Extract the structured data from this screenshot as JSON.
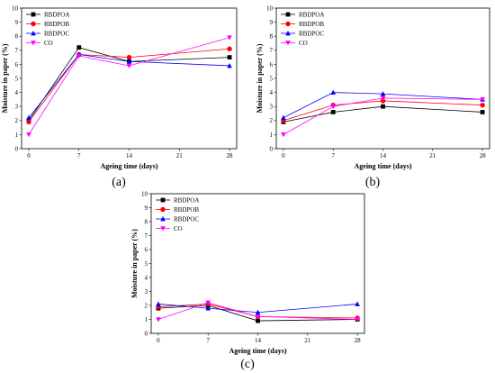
{
  "chart_data": [
    {
      "type": "line",
      "panel_label": "(a)",
      "xlabel": "Ageing time (days)",
      "ylabel": "Moisture in paper (%)",
      "x_ticks": [
        "0",
        "7",
        "14",
        "21",
        "28"
      ],
      "y_ticks": [
        "0",
        "1",
        "2",
        "3",
        "4",
        "5",
        "6",
        "7",
        "8",
        "9",
        "10"
      ],
      "xlim": [
        -1,
        29
      ],
      "ylim": [
        0,
        10
      ],
      "legend_position": "top-left",
      "x": [
        0,
        7,
        14,
        28
      ],
      "series": [
        {
          "name": "RBDPOA",
          "color": "#000000",
          "marker": "square",
          "values": [
            2.0,
            7.2,
            6.2,
            6.5
          ]
        },
        {
          "name": "RBDPOB",
          "color": "#ff0000",
          "marker": "circle",
          "values": [
            1.9,
            6.7,
            6.5,
            7.1
          ]
        },
        {
          "name": "RBDPOC",
          "color": "#0000ff",
          "marker": "triangle-up",
          "values": [
            2.2,
            6.7,
            6.2,
            5.9
          ]
        },
        {
          "name": "CO",
          "color": "#ff00ff",
          "marker": "triangle-down",
          "values": [
            1.0,
            6.6,
            5.9,
            7.9
          ]
        }
      ]
    },
    {
      "type": "line",
      "panel_label": "(b)",
      "xlabel": "Ageing time (days)",
      "ylabel": "Moisture in paper (%)",
      "x_ticks": [
        "0",
        "7",
        "14",
        "21",
        "28"
      ],
      "y_ticks": [
        "0",
        "1",
        "2",
        "3",
        "4",
        "5",
        "6",
        "7",
        "8",
        "9",
        "10"
      ],
      "xlim": [
        -1,
        29
      ],
      "ylim": [
        0,
        10
      ],
      "legend_position": "top-left",
      "x": [
        0,
        7,
        14,
        28
      ],
      "series": [
        {
          "name": "RBDPOA",
          "color": "#000000",
          "marker": "square",
          "values": [
            1.9,
            2.6,
            3.0,
            2.6
          ]
        },
        {
          "name": "RBDPOB",
          "color": "#ff0000",
          "marker": "circle",
          "values": [
            2.0,
            3.1,
            3.4,
            3.1
          ]
        },
        {
          "name": "RBDPOC",
          "color": "#0000ff",
          "marker": "triangle-up",
          "values": [
            2.2,
            4.0,
            3.9,
            3.5
          ]
        },
        {
          "name": "CO",
          "color": "#ff00ff",
          "marker": "triangle-down",
          "values": [
            1.0,
            3.0,
            3.6,
            3.5
          ]
        }
      ]
    },
    {
      "type": "line",
      "panel_label": "(c)",
      "xlabel": "Ageing time (days)",
      "ylabel": "Moisture in paper (%)",
      "x_ticks": [
        "0",
        "7",
        "14",
        "21",
        "28"
      ],
      "y_ticks": [
        "0",
        "1",
        "2",
        "3",
        "4",
        "5",
        "6",
        "7",
        "8",
        "9",
        "10"
      ],
      "xlim": [
        -1,
        29
      ],
      "ylim": [
        0,
        10
      ],
      "legend_position": "top-left",
      "x": [
        0,
        7,
        14,
        28
      ],
      "series": [
        {
          "name": "RBDPOA",
          "color": "#000000",
          "marker": "square",
          "values": [
            1.8,
            2.0,
            0.9,
            1.0
          ]
        },
        {
          "name": "RBDPOB",
          "color": "#ff0000",
          "marker": "circle",
          "values": [
            1.9,
            2.1,
            1.2,
            1.1
          ]
        },
        {
          "name": "RBDPOC",
          "color": "#0000ff",
          "marker": "triangle-up",
          "values": [
            2.1,
            1.8,
            1.5,
            2.1
          ]
        },
        {
          "name": "CO",
          "color": "#ff00ff",
          "marker": "triangle-down",
          "values": [
            1.0,
            2.2,
            1.2,
            1.0
          ]
        }
      ]
    }
  ]
}
